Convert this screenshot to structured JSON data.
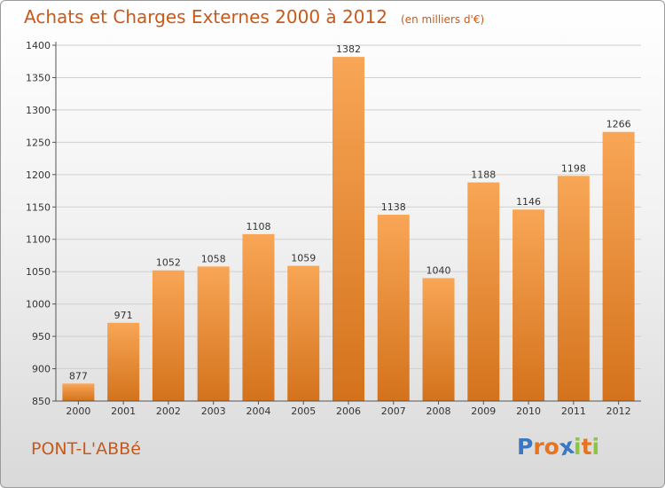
{
  "title": "Achats et Charges Externes 2000 à 2012",
  "unit": "(en milliers d'€)",
  "place": "PONT-L'ABBé",
  "logo": [
    "P",
    "r",
    "o",
    "x",
    "i",
    "t",
    "i"
  ],
  "logo_colors": [
    "#3a78c4",
    "#e8731e",
    "#e8731e",
    "#3a78c4",
    "#8cc63f",
    "#e8731e",
    "#8cc63f"
  ],
  "colors": {
    "bar_top": "#f8a656",
    "bar_bottom": "#d4721c",
    "accent": "#c8591a"
  },
  "chart_data": {
    "type": "bar",
    "categories": [
      "2000",
      "2001",
      "2002",
      "2003",
      "2004",
      "2005",
      "2006",
      "2007",
      "2008",
      "2009",
      "2010",
      "2011",
      "2012"
    ],
    "values": [
      877,
      971,
      1052,
      1058,
      1108,
      1059,
      1382,
      1138,
      1040,
      1188,
      1146,
      1198,
      1266
    ],
    "ylim": [
      850,
      1400
    ],
    "yticks": [
      850,
      900,
      950,
      1000,
      1050,
      1100,
      1150,
      1200,
      1250,
      1300,
      1350,
      1400
    ],
    "grid": true
  }
}
